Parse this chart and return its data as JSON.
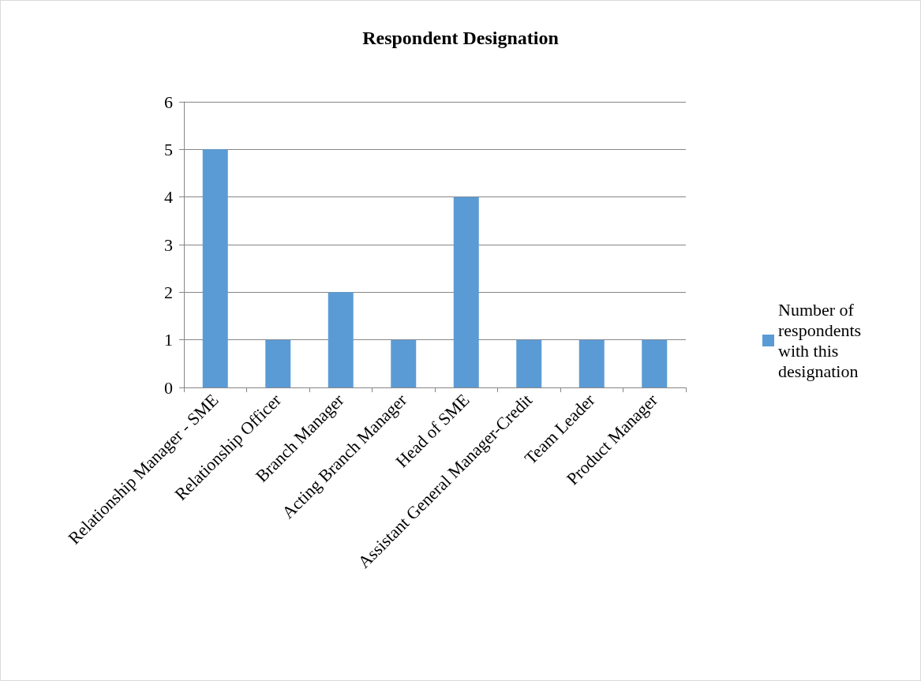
{
  "chart_data": {
    "type": "bar",
    "title": "Respondent Designation",
    "categories": [
      "Relationship Manager - SME",
      "Relationship Officer",
      "Branch Manager",
      "Acting Branch Manager",
      "Head of SME",
      "Assistant General Manager-Credit",
      "Team Leader",
      "Product Manager"
    ],
    "series": [
      {
        "name": "Number of respondents with this designation",
        "color": "#5b9bd5",
        "values": [
          5,
          1,
          2,
          1,
          4,
          1,
          1,
          1
        ]
      }
    ],
    "ylim": [
      0,
      6
    ],
    "yticks": [
      0,
      1,
      2,
      3,
      4,
      5,
      6
    ],
    "grid": "y",
    "legend": "right"
  }
}
